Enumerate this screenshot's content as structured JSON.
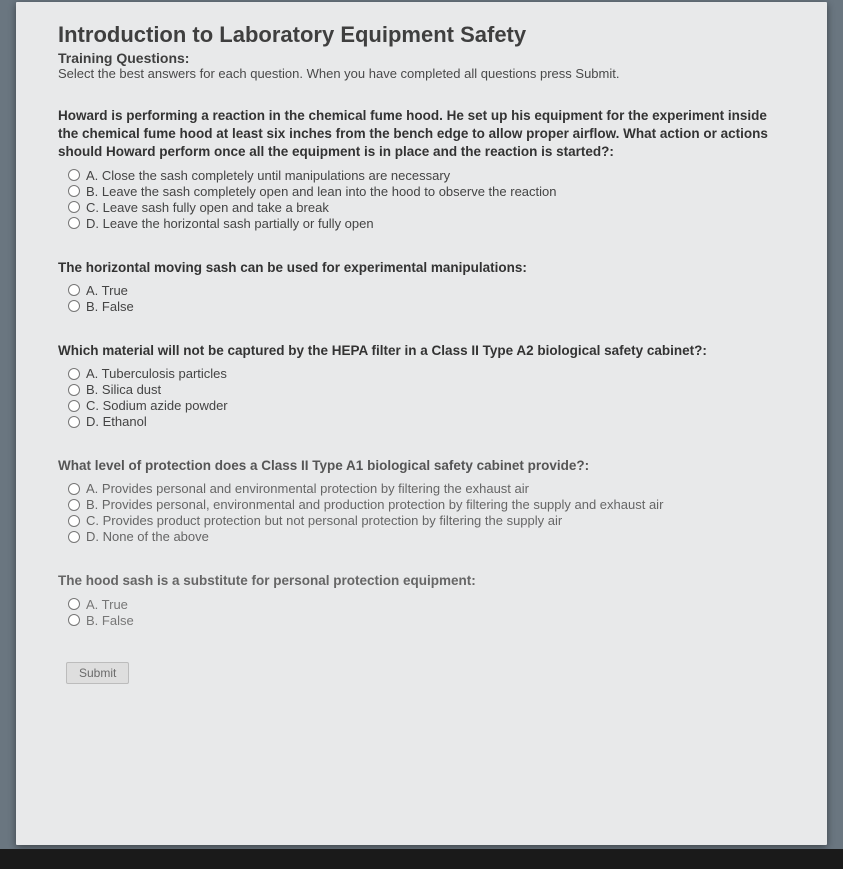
{
  "header": {
    "title": "Introduction to Laboratory Equipment Safety",
    "subhead": "Training Questions:",
    "instructions": "Select the best answers for each question. When you have completed all questions press Submit."
  },
  "questions": [
    {
      "prompt": "Howard is performing a reaction in the chemical fume hood. He set up his equipment for the experiment inside the chemical fume hood at least six inches from the bench edge to allow proper airflow. What action or actions should Howard perform once all the equipment is in place and the reaction is started?:",
      "options": [
        "A. Close the sash completely until manipulations are necessary",
        "B. Leave the sash completely open and lean into the hood to observe the reaction",
        "C. Leave sash fully open and take a break",
        "D. Leave the horizontal sash partially or fully open"
      ]
    },
    {
      "prompt": "The horizontal moving sash can be used for experimental manipulations:",
      "options": [
        "A. True",
        "B. False"
      ]
    },
    {
      "prompt": "Which material will not be captured by the HEPA filter in a Class II Type A2 biological safety cabinet?:",
      "options": [
        "A. Tuberculosis particles",
        "B. Silica dust",
        "C. Sodium azide powder",
        "D. Ethanol"
      ]
    },
    {
      "prompt": "What level of protection does a Class II Type A1 biological safety cabinet provide?:",
      "options": [
        "A. Provides personal and environmental protection by filtering the exhaust air",
        "B. Provides personal, environmental and production protection by filtering the supply and exhaust air",
        "C. Provides product protection but not personal protection by filtering the supply air",
        "D. None of the above"
      ]
    },
    {
      "prompt": "The hood sash is a substitute for personal protection equipment:",
      "options": [
        "A. True",
        "B. False"
      ]
    }
  ],
  "submit_label": "Submit",
  "colors": {
    "page_bg": "#e8e9ea",
    "outer_bg": "#6a7680",
    "heading": "#3f3f3f",
    "body_text": "#444"
  }
}
